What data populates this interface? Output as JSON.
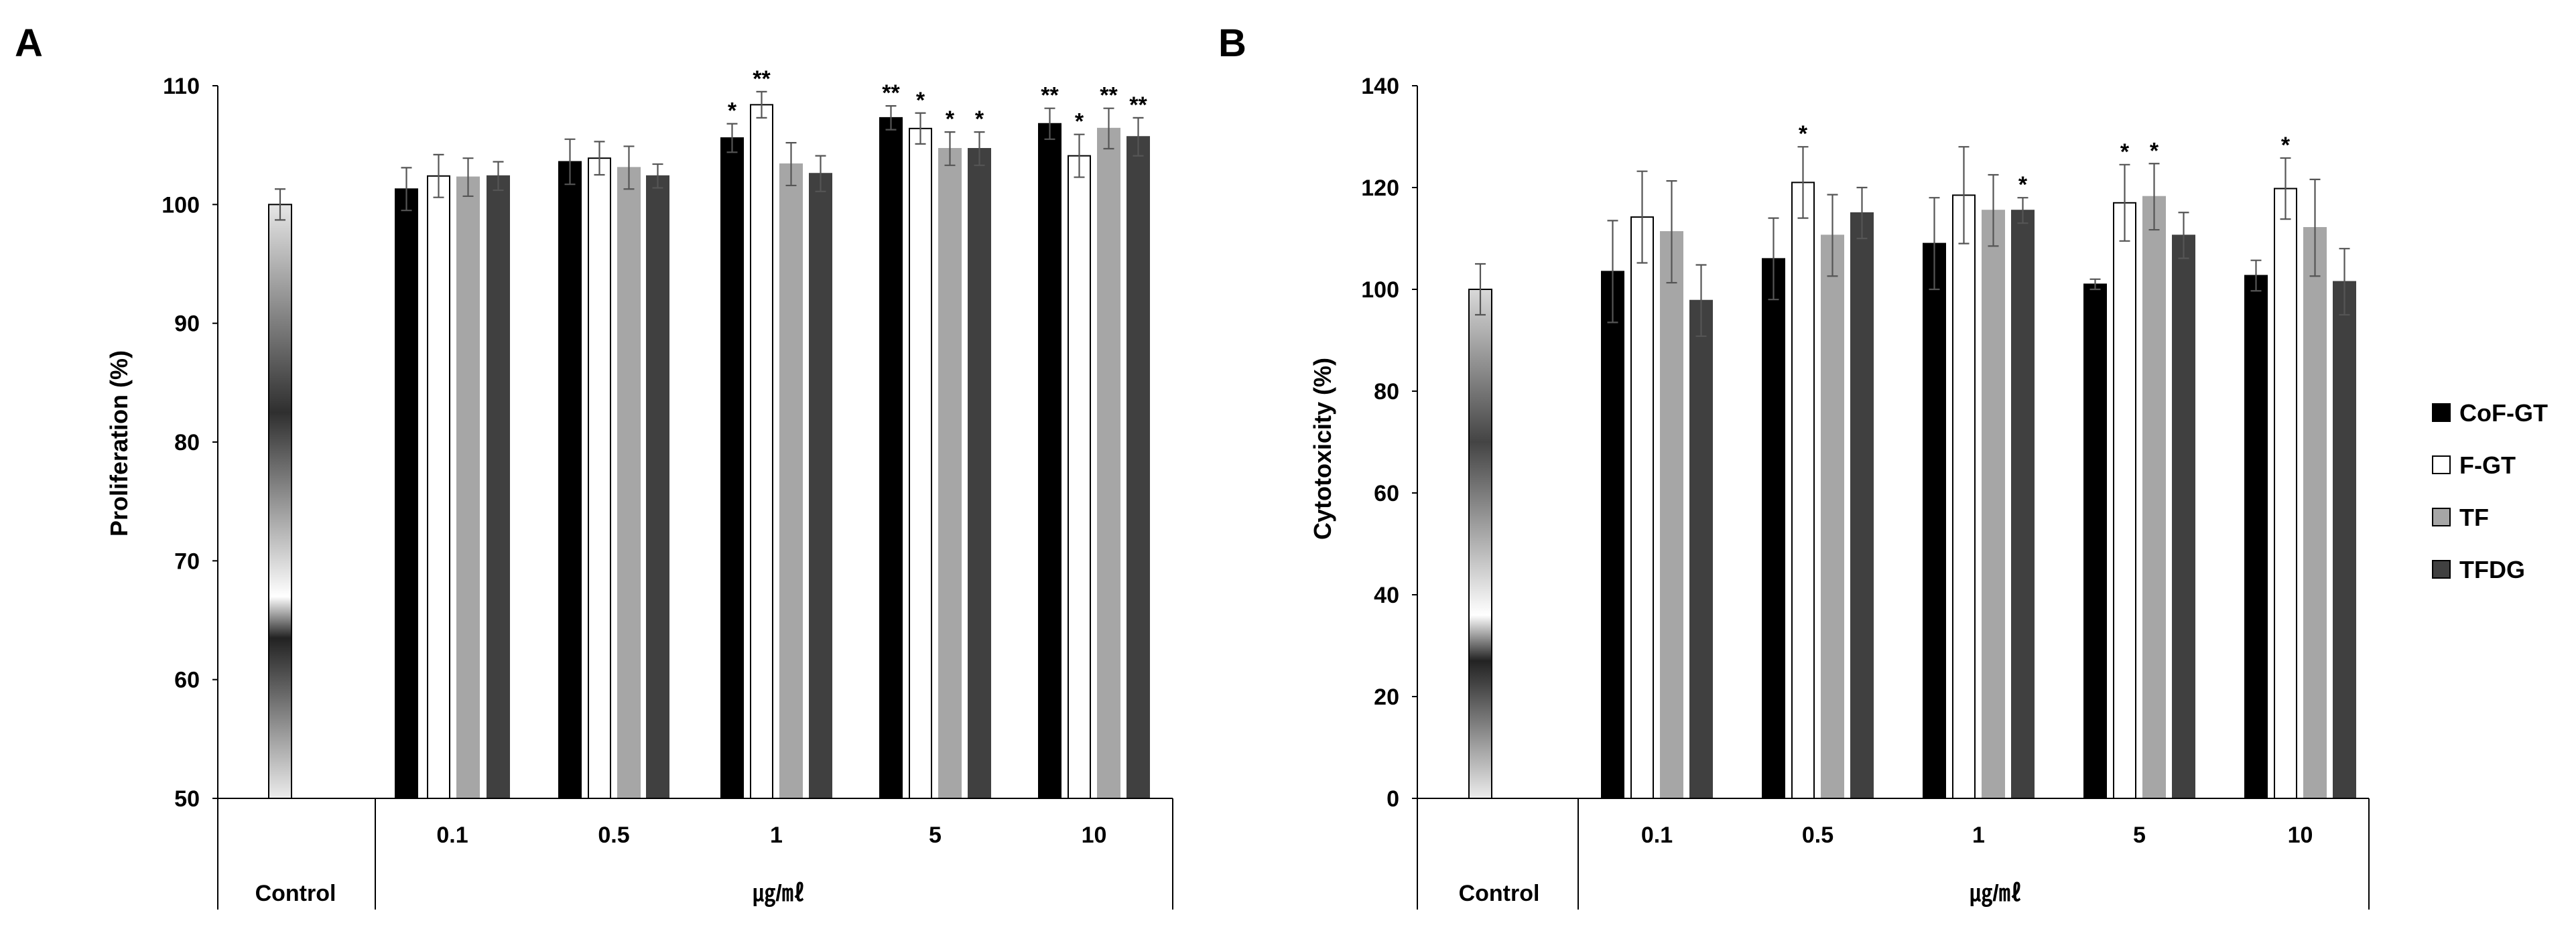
{
  "chart_data": [
    {
      "id": "A",
      "panel_label": "A",
      "type": "bar",
      "ylabel": "Proliferation (%)",
      "ylim": [
        50,
        110
      ],
      "yticks": [
        50,
        60,
        70,
        80,
        90,
        100,
        110
      ],
      "control": {
        "label": "Control",
        "value": 100,
        "error": 1.3
      },
      "xlabel": "㎍/㎖",
      "categories": [
        "0.1",
        "0.5",
        "1",
        "5",
        "10"
      ],
      "series": [
        {
          "name": "CoF-GT",
          "values": [
            101.3,
            103.6,
            105.6,
            107.3,
            106.8
          ],
          "errors": [
            1.8,
            1.9,
            1.2,
            1.0,
            1.3
          ],
          "sig": [
            "",
            "",
            "*",
            "**",
            "**"
          ]
        },
        {
          "name": "F-GT",
          "values": [
            102.4,
            103.9,
            108.4,
            106.4,
            104.1
          ],
          "errors": [
            1.8,
            1.4,
            1.1,
            1.3,
            1.8
          ],
          "sig": [
            "",
            "",
            "**",
            "*",
            "*"
          ]
        },
        {
          "name": "TF",
          "values": [
            102.3,
            103.1,
            103.4,
            104.7,
            106.4
          ],
          "errors": [
            1.6,
            1.8,
            1.8,
            1.4,
            1.7
          ],
          "sig": [
            "",
            "",
            "",
            "*",
            "**"
          ]
        },
        {
          "name": "TFDG",
          "values": [
            102.4,
            102.4,
            102.6,
            104.7,
            105.7
          ],
          "errors": [
            1.2,
            1.0,
            1.5,
            1.4,
            1.6
          ],
          "sig": [
            "",
            "",
            "",
            "*",
            "**"
          ]
        }
      ]
    },
    {
      "id": "B",
      "panel_label": "B",
      "type": "bar",
      "ylabel": "Cytotoxicity (%)",
      "ylim": [
        0,
        140
      ],
      "yticks": [
        0,
        20,
        40,
        60,
        80,
        100,
        120,
        140
      ],
      "control": {
        "label": "Control",
        "value": 100,
        "error": 5
      },
      "xlabel": "㎍/㎖",
      "categories": [
        "0.1",
        "0.5",
        "1",
        "5",
        "10"
      ],
      "series": [
        {
          "name": "CoF-GT",
          "values": [
            103.5,
            106,
            109,
            101,
            102.7
          ],
          "errors": [
            10,
            8,
            9,
            1,
            3
          ],
          "sig": [
            "",
            "",
            "",
            "",
            ""
          ]
        },
        {
          "name": "F-GT",
          "values": [
            114.2,
            121,
            118.5,
            117,
            119.8
          ],
          "errors": [
            9,
            7,
            9.5,
            7.5,
            6
          ],
          "sig": [
            "",
            "*",
            "",
            "*",
            "*"
          ]
        },
        {
          "name": "TF",
          "values": [
            111.3,
            110.6,
            115.5,
            118.2,
            112.1
          ],
          "errors": [
            10,
            8,
            7,
            6.5,
            9.5
          ],
          "sig": [
            "",
            "",
            "",
            "*",
            ""
          ]
        },
        {
          "name": "TFDG",
          "values": [
            97.8,
            115,
            115.5,
            110.6,
            101.5
          ],
          "errors": [
            7,
            5,
            2.5,
            4.5,
            6.5
          ],
          "sig": [
            "",
            "",
            "*",
            "",
            ""
          ]
        }
      ]
    }
  ],
  "legend": [
    {
      "name": "CoF-GT",
      "color": "#000000"
    },
    {
      "name": "F-GT",
      "color": "#ffffff"
    },
    {
      "name": "TF",
      "color": "#a6a6a6"
    },
    {
      "name": "TFDG",
      "color": "#404040"
    }
  ]
}
